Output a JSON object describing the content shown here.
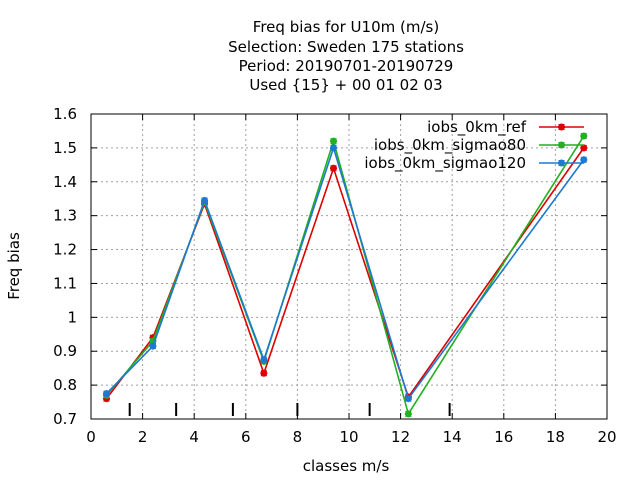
{
  "chart_data": {
    "type": "line",
    "title_lines": [
      "Freq bias  for U10m (m/s)",
      "Selection: Sweden    175 stations",
      "Period: 20190701-20190729",
      "Used {15} + 00 01 02 03"
    ],
    "xlabel": "classes m/s",
    "ylabel": "Freq bias",
    "xlim": [
      0,
      20
    ],
    "ylim": [
      0.7,
      1.6
    ],
    "xticks": [
      0,
      2,
      4,
      6,
      8,
      10,
      12,
      14,
      16,
      18,
      20
    ],
    "yticks": [
      0.7,
      0.8,
      0.9,
      1,
      1.1,
      1.2,
      1.3,
      1.4,
      1.5,
      1.6
    ],
    "ytick_labels": [
      "0.7",
      "0.8",
      "0.9",
      "1",
      "1.1",
      "1.2",
      "1.3",
      "1.4",
      "1.5",
      "1.6"
    ],
    "class_boundaries": [
      1.5,
      3.3,
      5.5,
      8.0,
      10.8,
      13.9
    ],
    "grid": true,
    "legend_position": "top-right",
    "x": [
      0.6,
      2.4,
      4.4,
      6.7,
      9.4,
      12.3,
      19.1
    ],
    "series": [
      {
        "name": "iobs_0km_ref",
        "color": "#dd0000",
        "values": [
          0.76,
          0.94,
          1.335,
          0.835,
          1.44,
          0.765,
          1.5
        ]
      },
      {
        "name": "iobs_0km_sigmao80",
        "color": "#20b020",
        "values": [
          0.77,
          0.93,
          1.34,
          0.87,
          1.52,
          0.715,
          1.535
        ]
      },
      {
        "name": "iobs_0km_sigmao120",
        "color": "#1f78d1",
        "values": [
          0.775,
          0.915,
          1.345,
          0.875,
          1.5,
          0.76,
          1.465
        ]
      }
    ]
  }
}
